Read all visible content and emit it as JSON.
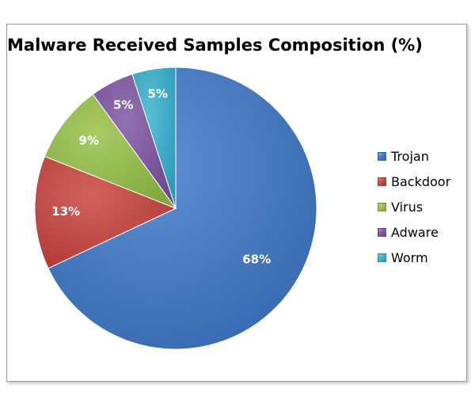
{
  "chart_data": {
    "type": "pie",
    "title": "Malware Received Samples Composition (%)",
    "categories": [
      "Trojan",
      "Backdoor",
      "Virus",
      "Adware",
      "Worm"
    ],
    "values": [
      68,
      13,
      9,
      5,
      5
    ],
    "data_labels": [
      "68%",
      "13%",
      "9%",
      "5%",
      "5%"
    ],
    "colors": [
      "#3c76c7",
      "#c8403a",
      "#95c044",
      "#7a52a0",
      "#33b0cc"
    ],
    "legend_position": "right"
  }
}
